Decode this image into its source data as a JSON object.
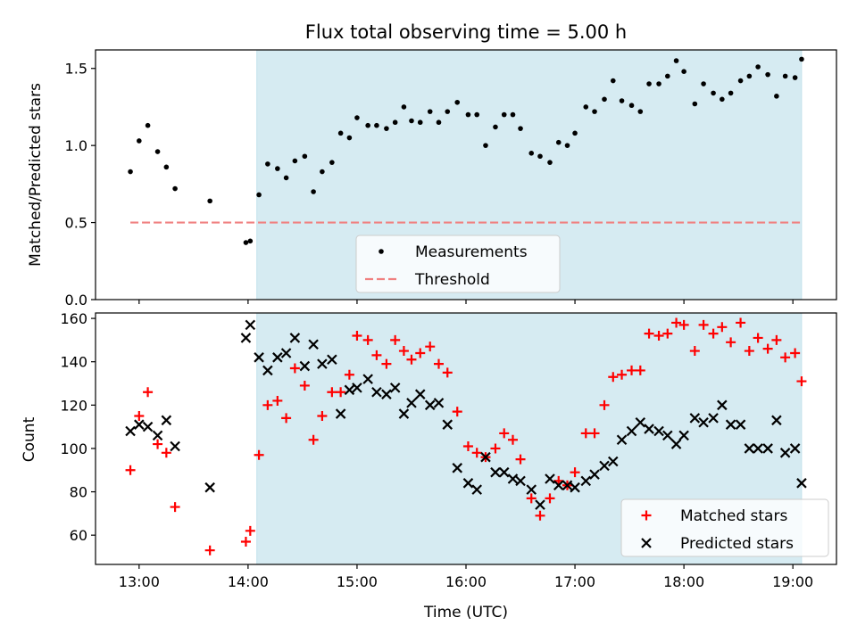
{
  "chart_data": [
    {
      "type": "scatter",
      "title": "Flux total observing time = 5.00 h",
      "xlabel": "",
      "ylabel": "Matched/Predicted stars",
      "xlim": [
        12.6,
        19.4
      ],
      "ylim": [
        0.0,
        1.62
      ],
      "yticks": [
        0.0,
        0.5,
        1.0,
        1.5
      ],
      "ytick_labels": [
        "0.0",
        "0.5",
        "1.0",
        "1.5"
      ],
      "grid": false,
      "legend": "lower-center",
      "shaded_span": {
        "start": 14.08,
        "end": 19.08,
        "color": "#add8e6"
      },
      "threshold": {
        "name": "Threshold",
        "value": 0.5,
        "x_range": [
          12.92,
          19.08
        ],
        "color": "#f08080",
        "style": "dashed"
      },
      "series": [
        {
          "name": "Measurements",
          "color": "#000000",
          "marker": "dot",
          "points": [
            [
              12.92,
              0.83
            ],
            [
              13.0,
              1.03
            ],
            [
              13.08,
              1.13
            ],
            [
              13.17,
              0.96
            ],
            [
              13.25,
              0.86
            ],
            [
              13.33,
              0.72
            ],
            [
              13.65,
              0.64
            ],
            [
              13.98,
              0.37
            ],
            [
              14.02,
              0.38
            ],
            [
              14.1,
              0.68
            ],
            [
              14.18,
              0.88
            ],
            [
              14.27,
              0.85
            ],
            [
              14.35,
              0.79
            ],
            [
              14.43,
              0.9
            ],
            [
              14.52,
              0.93
            ],
            [
              14.6,
              0.7
            ],
            [
              14.68,
              0.83
            ],
            [
              14.77,
              0.89
            ],
            [
              14.85,
              1.08
            ],
            [
              14.93,
              1.05
            ],
            [
              15.0,
              1.18
            ],
            [
              15.1,
              1.13
            ],
            [
              15.18,
              1.13
            ],
            [
              15.27,
              1.11
            ],
            [
              15.35,
              1.15
            ],
            [
              15.43,
              1.25
            ],
            [
              15.5,
              1.16
            ],
            [
              15.58,
              1.15
            ],
            [
              15.67,
              1.22
            ],
            [
              15.75,
              1.15
            ],
            [
              15.83,
              1.22
            ],
            [
              15.92,
              1.28
            ],
            [
              16.02,
              1.2
            ],
            [
              16.1,
              1.2
            ],
            [
              16.18,
              1.0
            ],
            [
              16.27,
              1.12
            ],
            [
              16.35,
              1.2
            ],
            [
              16.43,
              1.2
            ],
            [
              16.5,
              1.11
            ],
            [
              16.6,
              0.95
            ],
            [
              16.68,
              0.93
            ],
            [
              16.77,
              0.89
            ],
            [
              16.85,
              1.02
            ],
            [
              16.93,
              1.0
            ],
            [
              17.0,
              1.08
            ],
            [
              17.1,
              1.25
            ],
            [
              17.18,
              1.22
            ],
            [
              17.27,
              1.3
            ],
            [
              17.35,
              1.42
            ],
            [
              17.43,
              1.29
            ],
            [
              17.52,
              1.26
            ],
            [
              17.6,
              1.22
            ],
            [
              17.68,
              1.4
            ],
            [
              17.77,
              1.4
            ],
            [
              17.85,
              1.45
            ],
            [
              17.93,
              1.55
            ],
            [
              18.0,
              1.48
            ],
            [
              18.1,
              1.27
            ],
            [
              18.18,
              1.4
            ],
            [
              18.27,
              1.34
            ],
            [
              18.35,
              1.3
            ],
            [
              18.43,
              1.34
            ],
            [
              18.52,
              1.42
            ],
            [
              18.6,
              1.45
            ],
            [
              18.68,
              1.51
            ],
            [
              18.77,
              1.46
            ],
            [
              18.85,
              1.32
            ],
            [
              18.93,
              1.45
            ],
            [
              19.02,
              1.44
            ],
            [
              19.08,
              1.56
            ]
          ]
        }
      ]
    },
    {
      "type": "scatter",
      "title": "",
      "xlabel": "Time (UTC)",
      "ylabel": "Count",
      "xlim": [
        12.6,
        19.4
      ],
      "ylim": [
        46.5,
        162.5
      ],
      "yticks": [
        60,
        80,
        100,
        120,
        140,
        160
      ],
      "ytick_labels": [
        "60",
        "80",
        "100",
        "120",
        "140",
        "160"
      ],
      "xticks": [
        13,
        14,
        15,
        16,
        17,
        18,
        19
      ],
      "xtick_labels": [
        "13:00",
        "14:00",
        "15:00",
        "16:00",
        "17:00",
        "18:00",
        "19:00"
      ],
      "grid": false,
      "legend": "lower-right",
      "shaded_span": {
        "start": 14.08,
        "end": 19.08,
        "color": "#add8e6"
      },
      "series": [
        {
          "name": "Matched stars",
          "color": "#ff0000",
          "marker": "plus",
          "points": [
            [
              12.92,
              90
            ],
            [
              13.0,
              115
            ],
            [
              13.08,
              126
            ],
            [
              13.17,
              102
            ],
            [
              13.25,
              98
            ],
            [
              13.33,
              73
            ],
            [
              13.65,
              53
            ],
            [
              13.98,
              57
            ],
            [
              14.02,
              62
            ],
            [
              14.1,
              97
            ],
            [
              14.18,
              120
            ],
            [
              14.27,
              122
            ],
            [
              14.35,
              114
            ],
            [
              14.43,
              137
            ],
            [
              14.52,
              129
            ],
            [
              14.6,
              104
            ],
            [
              14.68,
              115
            ],
            [
              14.77,
              126
            ],
            [
              14.85,
              126
            ],
            [
              14.93,
              134
            ],
            [
              15.0,
              152
            ],
            [
              15.1,
              150
            ],
            [
              15.18,
              143
            ],
            [
              15.27,
              139
            ],
            [
              15.35,
              150
            ],
            [
              15.43,
              145
            ],
            [
              15.5,
              141
            ],
            [
              15.58,
              144
            ],
            [
              15.67,
              147
            ],
            [
              15.75,
              139
            ],
            [
              15.83,
              135
            ],
            [
              15.92,
              117
            ],
            [
              16.02,
              101
            ],
            [
              16.1,
              98
            ],
            [
              16.18,
              96
            ],
            [
              16.27,
              100
            ],
            [
              16.35,
              107
            ],
            [
              16.43,
              104
            ],
            [
              16.5,
              95
            ],
            [
              16.6,
              77
            ],
            [
              16.68,
              69
            ],
            [
              16.77,
              77
            ],
            [
              16.85,
              85
            ],
            [
              16.93,
              83
            ],
            [
              17.0,
              89
            ],
            [
              17.1,
              107
            ],
            [
              17.18,
              107
            ],
            [
              17.27,
              120
            ],
            [
              17.35,
              133
            ],
            [
              17.43,
              134
            ],
            [
              17.52,
              136
            ],
            [
              17.6,
              136
            ],
            [
              17.68,
              153
            ],
            [
              17.77,
              152
            ],
            [
              17.85,
              153
            ],
            [
              17.93,
              158
            ],
            [
              18.0,
              157
            ],
            [
              18.1,
              145
            ],
            [
              18.18,
              157
            ],
            [
              18.27,
              153
            ],
            [
              18.35,
              156
            ],
            [
              18.43,
              149
            ],
            [
              18.52,
              158
            ],
            [
              18.6,
              145
            ],
            [
              18.68,
              151
            ],
            [
              18.77,
              146
            ],
            [
              18.85,
              150
            ],
            [
              18.93,
              142
            ],
            [
              19.02,
              144
            ],
            [
              19.08,
              131
            ]
          ]
        },
        {
          "name": "Predicted stars",
          "color": "#000000",
          "marker": "x",
          "points": [
            [
              12.92,
              108
            ],
            [
              13.0,
              111
            ],
            [
              13.08,
              110
            ],
            [
              13.17,
              106
            ],
            [
              13.25,
              113
            ],
            [
              13.33,
              101
            ],
            [
              13.65,
              82
            ],
            [
              13.98,
              151
            ],
            [
              14.02,
              157
            ],
            [
              14.1,
              142
            ],
            [
              14.18,
              136
            ],
            [
              14.27,
              142
            ],
            [
              14.35,
              144
            ],
            [
              14.43,
              151
            ],
            [
              14.52,
              138
            ],
            [
              14.6,
              148
            ],
            [
              14.68,
              139
            ],
            [
              14.77,
              141
            ],
            [
              14.85,
              116
            ],
            [
              14.93,
              127
            ],
            [
              15.0,
              128
            ],
            [
              15.1,
              132
            ],
            [
              15.18,
              126
            ],
            [
              15.27,
              125
            ],
            [
              15.35,
              128
            ],
            [
              15.43,
              116
            ],
            [
              15.5,
              121
            ],
            [
              15.58,
              125
            ],
            [
              15.67,
              120
            ],
            [
              15.75,
              121
            ],
            [
              15.83,
              111
            ],
            [
              15.92,
              91
            ],
            [
              16.02,
              84
            ],
            [
              16.1,
              81
            ],
            [
              16.18,
              96
            ],
            [
              16.27,
              89
            ],
            [
              16.35,
              89
            ],
            [
              16.43,
              86
            ],
            [
              16.5,
              85
            ],
            [
              16.6,
              81
            ],
            [
              16.68,
              74
            ],
            [
              16.77,
              86
            ],
            [
              16.85,
              83
            ],
            [
              16.93,
              83
            ],
            [
              17.0,
              82
            ],
            [
              17.1,
              85
            ],
            [
              17.18,
              88
            ],
            [
              17.27,
              92
            ],
            [
              17.35,
              94
            ],
            [
              17.43,
              104
            ],
            [
              17.52,
              108
            ],
            [
              17.6,
              112
            ],
            [
              17.68,
              109
            ],
            [
              17.77,
              108
            ],
            [
              17.85,
              106
            ],
            [
              17.93,
              102
            ],
            [
              18.0,
              106
            ],
            [
              18.1,
              114
            ],
            [
              18.18,
              112
            ],
            [
              18.27,
              114
            ],
            [
              18.35,
              120
            ],
            [
              18.43,
              111
            ],
            [
              18.52,
              111
            ],
            [
              18.6,
              100
            ],
            [
              18.68,
              100
            ],
            [
              18.77,
              100
            ],
            [
              18.85,
              113
            ],
            [
              18.93,
              98
            ],
            [
              19.02,
              100
            ],
            [
              19.08,
              84
            ]
          ]
        }
      ]
    }
  ]
}
